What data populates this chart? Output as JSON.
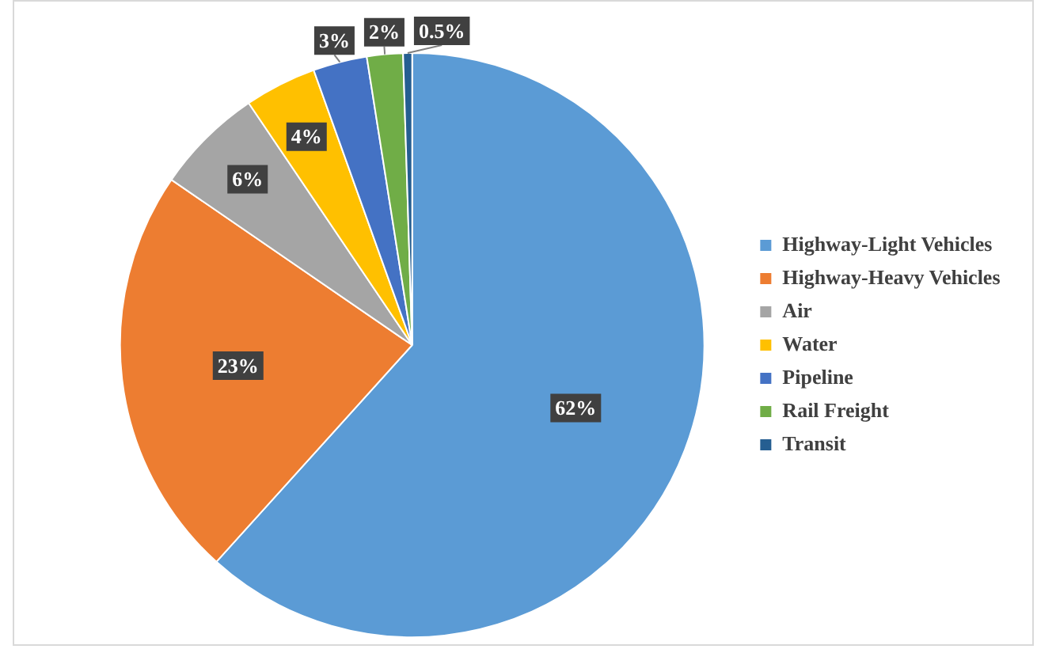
{
  "chart_data": {
    "type": "pie",
    "categories": [
      "Highway-Light Vehicles",
      "Highway-Heavy Vehicles",
      "Air",
      "Water",
      "Pipeline",
      "Rail Freight",
      "Transit"
    ],
    "values": [
      62,
      23,
      6,
      4,
      3,
      2,
      0.5
    ],
    "colors": [
      "#5b9bd5",
      "#ed7d31",
      "#a5a5a5",
      "#ffc000",
      "#4472c4",
      "#70ad47",
      "#255e91"
    ],
    "value_labels": [
      "62%",
      "23%",
      "6%",
      "4%",
      "3%",
      "2%",
      "0.5%"
    ],
    "legend": "right"
  }
}
